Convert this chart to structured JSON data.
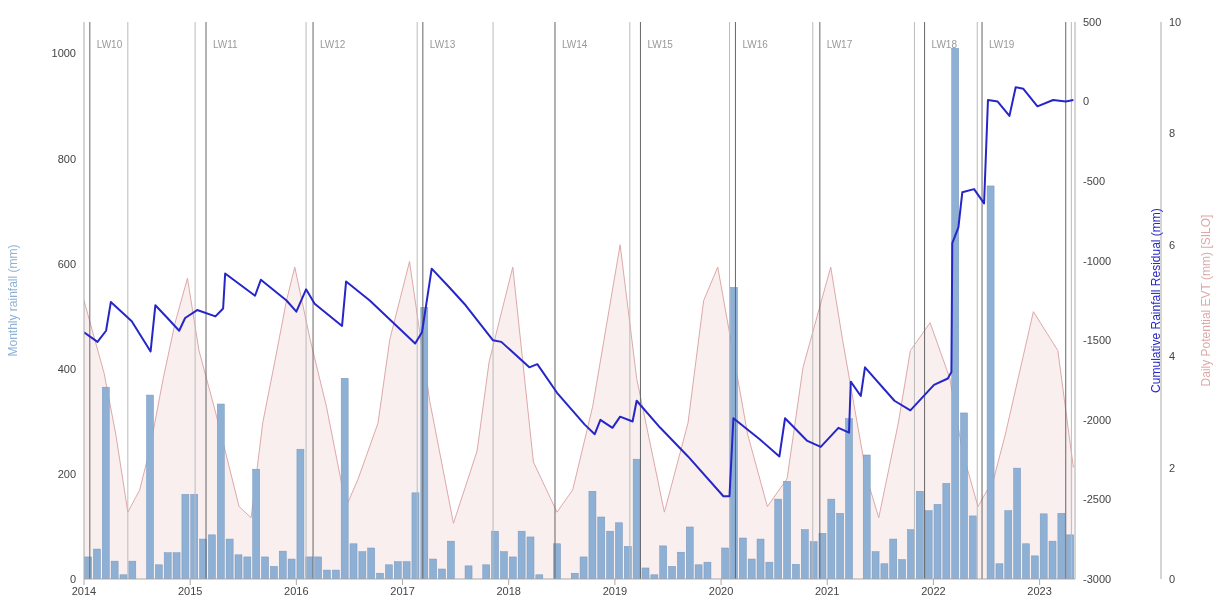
{
  "chart_data": {
    "type": "bar",
    "ylabel": "Monthly rainfall (mm)",
    "y2label": "Cumulative Rainfall Residual (mm)",
    "y3label": "Daily Potential EVT (mm) [SILO]",
    "xlim": [
      "2014-01-01",
      "2023-05-01"
    ],
    "xticks": [
      "2014",
      "2015",
      "2016",
      "2017",
      "2018",
      "2019",
      "2020",
      "2021",
      "2022",
      "2023"
    ],
    "ylim": [
      0,
      1060
    ],
    "yticks": [
      0,
      200,
      400,
      600,
      800,
      1000
    ],
    "y2lim": [
      -3000,
      500
    ],
    "y2ticks": [
      -3000,
      -2500,
      -2000,
      -1500,
      -1000,
      -500,
      0,
      500
    ],
    "y3lim": [
      0,
      10
    ],
    "y3ticks": [
      0,
      2,
      4,
      6,
      8,
      10
    ],
    "grid": false,
    "legend": false,
    "series": [
      {
        "type": "area",
        "axis": "y3",
        "color": "#dfa8a8",
        "x": [
          "2014-01-01",
          "2014-03-09",
          "2014-04-19",
          "2014-05-30",
          "2014-07-10",
          "2014-08-13",
          "2014-09-30",
          "2014-11-10",
          "2014-12-22",
          "2015-02-01",
          "2015-03-27",
          "2015-06-17",
          "2015-07-28",
          "2015-09-07",
          "2015-10-18",
          "2015-11-28",
          "2015-12-26",
          "2016-02-18",
          "2016-04-13",
          "2016-06-20",
          "2016-07-31",
          "2016-10-08",
          "2016-11-18",
          "2017-01-25",
          "2017-04-03",
          "2017-06-24",
          "2017-09-14",
          "2017-10-25",
          "2018-01-15",
          "2018-03-25",
          "2018-06-15",
          "2018-08-08",
          "2018-10-16",
          "2019-01-19",
          "2019-03-15",
          "2019-06-19",
          "2019-09-09",
          "2019-11-02",
          "2019-12-20",
          "2020-04-01",
          "2020-06-08",
          "2020-08-15",
          "2020-10-09",
          "2021-01-13",
          "2021-02-23",
          "2021-05-16",
          "2021-06-26",
          "2021-09-02",
          "2021-10-13",
          "2021-12-20",
          "2022-02-27",
          "2022-04-09",
          "2022-06-02",
          "2022-07-26",
          "2022-09-05",
          "2022-12-10",
          "2023-03-03",
          "2023-04-13",
          "2023-04-26"
        ],
        "values": [
          5.0,
          3.7,
          2.6,
          1.2,
          1.6,
          2.3,
          3.6,
          4.6,
          5.4,
          4.1,
          3.0,
          1.3,
          1.1,
          2.8,
          3.9,
          5.0,
          5.6,
          4.3,
          3.1,
          1.3,
          1.8,
          2.8,
          4.3,
          5.7,
          3.2,
          1.0,
          2.3,
          3.9,
          5.6,
          2.1,
          1.2,
          1.6,
          3.1,
          6.0,
          3.6,
          1.2,
          2.8,
          5.0,
          5.6,
          2.6,
          1.3,
          1.8,
          3.8,
          5.6,
          4.3,
          1.8,
          1.1,
          2.8,
          4.1,
          4.6,
          3.6,
          2.3,
          1.3,
          1.8,
          2.6,
          4.8,
          4.1,
          2.5,
          2.0
        ]
      },
      {
        "color": "#8eb0d4",
        "x": [
          "2014-01-15",
          "2014-02-15",
          "2014-03-15",
          "2014-04-15",
          "2014-05-15",
          "2014-06-15",
          "2014-07-15",
          "2014-08-15",
          "2014-09-15",
          "2014-10-15",
          "2014-11-15",
          "2014-12-15",
          "2015-01-15",
          "2015-02-15",
          "2015-03-15",
          "2015-04-15",
          "2015-05-15",
          "2015-06-15",
          "2015-07-15",
          "2015-08-15",
          "2015-09-15",
          "2015-10-15",
          "2015-11-15",
          "2015-12-15",
          "2016-01-15",
          "2016-02-15",
          "2016-03-15",
          "2016-04-15",
          "2016-05-15",
          "2016-06-15",
          "2016-07-15",
          "2016-08-15",
          "2016-09-15",
          "2016-10-15",
          "2016-11-15",
          "2016-12-15",
          "2017-01-15",
          "2017-02-15",
          "2017-03-15",
          "2017-04-15",
          "2017-05-15",
          "2017-06-15",
          "2017-07-15",
          "2017-08-15",
          "2017-09-15",
          "2017-10-15",
          "2017-11-15",
          "2017-12-15",
          "2018-01-15",
          "2018-02-15",
          "2018-03-15",
          "2018-04-15",
          "2018-05-15",
          "2018-06-15",
          "2018-07-15",
          "2018-08-15",
          "2018-09-15",
          "2018-10-15",
          "2018-11-15",
          "2018-12-15",
          "2019-01-15",
          "2019-02-15",
          "2019-03-15",
          "2019-04-15",
          "2019-05-15",
          "2019-06-15",
          "2019-07-15",
          "2019-08-15",
          "2019-09-15",
          "2019-10-15",
          "2019-11-15",
          "2019-12-15",
          "2020-01-15",
          "2020-02-15",
          "2020-03-15",
          "2020-04-15",
          "2020-05-15",
          "2020-06-15",
          "2020-07-15",
          "2020-08-15",
          "2020-09-15",
          "2020-10-15",
          "2020-11-15",
          "2020-12-15",
          "2021-01-15",
          "2021-02-15",
          "2021-03-15",
          "2021-04-15",
          "2021-05-15",
          "2021-06-15",
          "2021-07-15",
          "2021-08-15",
          "2021-09-15",
          "2021-10-15",
          "2021-11-15",
          "2021-12-15",
          "2022-01-15",
          "2022-02-15",
          "2022-03-15",
          "2022-04-15",
          "2022-05-15",
          "2022-06-15",
          "2022-07-15",
          "2022-08-15",
          "2022-09-15",
          "2022-10-15",
          "2022-11-15",
          "2022-12-15",
          "2023-01-15",
          "2023-02-15",
          "2023-03-15",
          "2023-04-15"
        ],
        "values": [
          42,
          57,
          365,
          34,
          8,
          34,
          0,
          350,
          27,
          50,
          50,
          161,
          161,
          76,
          84,
          333,
          76,
          46,
          42,
          209,
          42,
          24,
          53,
          38,
          247,
          42,
          42,
          17,
          17,
          382,
          67,
          52,
          59,
          11,
          27,
          33,
          33,
          164,
          517,
          38,
          19,
          72,
          0,
          25,
          0,
          27,
          91,
          52,
          42,
          91,
          80,
          8,
          0,
          67,
          0,
          11,
          42,
          167,
          118,
          91,
          107,
          62,
          228,
          21,
          8,
          63,
          24,
          51,
          99,
          27,
          32,
          0,
          59,
          555,
          78,
          38,
          76,
          32,
          152,
          186,
          28,
          94,
          71,
          87,
          152,
          125,
          305,
          0,
          236,
          52,
          29,
          76,
          37,
          94,
          167,
          130,
          142,
          182,
          1010,
          316,
          120,
          0,
          748,
          29,
          130,
          211,
          67,
          44,
          124,
          72,
          125,
          84
        ]
      },
      {
        "type": "line",
        "axis": "y2",
        "color": "#2626c8",
        "x": [
          "2014-01-01",
          "2014-02-17",
          "2014-03-16",
          "2014-04-02",
          "2014-06-13",
          "2014-08-17",
          "2014-09-03",
          "2014-10-14",
          "2014-11-24",
          "2014-12-14",
          "2015-01-25",
          "2015-03-27",
          "2015-04-23",
          "2015-04-30",
          "2015-08-11",
          "2015-08-31",
          "2015-11-28",
          "2016-01-01",
          "2016-02-04",
          "2016-03-03",
          "2016-06-06",
          "2016-06-20",
          "2016-09-10",
          "2017-02-14",
          "2017-03-07",
          "2017-04-10",
          "2017-06-11",
          "2017-08-05",
          "2017-11-08",
          "2017-12-06",
          "2018-03-11",
          "2018-04-08",
          "2018-06-15",
          "2018-09-19",
          "2018-10-23",
          "2018-11-12",
          "2018-12-23",
          "2019-01-19",
          "2019-03-01",
          "2019-03-15",
          "2019-06-05",
          "2019-09-09",
          "2020-01-09",
          "2020-01-30",
          "2020-02-13",
          "2020-05-11",
          "2020-07-19",
          "2020-08-08",
          "2020-10-22",
          "2020-12-09",
          "2021-02-09",
          "2021-03-15",
          "2021-03-21",
          "2021-04-25",
          "2021-05-09",
          "2021-08-19",
          "2021-10-13",
          "2022-01-03",
          "2022-02-20",
          "2022-03-02",
          "2022-03-05",
          "2022-03-26",
          "2022-04-09",
          "2022-05-19",
          "2022-06-23",
          "2022-07-06",
          "2022-08-09",
          "2022-09-19",
          "2022-10-10",
          "2022-11-06",
          "2022-12-24",
          "2023-02-17",
          "2023-03-30",
          "2023-04-26"
        ],
        "values": [
          -1450,
          -1510,
          -1440,
          -1260,
          -1380,
          -1570,
          -1280,
          -1360,
          -1440,
          -1360,
          -1310,
          -1350,
          -1300,
          -1080,
          -1220,
          -1120,
          -1250,
          -1320,
          -1180,
          -1270,
          -1410,
          -1130,
          -1250,
          -1520,
          -1450,
          -1050,
          -1170,
          -1280,
          -1500,
          -1510,
          -1670,
          -1650,
          -1830,
          -2030,
          -2090,
          -2000,
          -2050,
          -1980,
          -2010,
          -1880,
          -2050,
          -2230,
          -2480,
          -2480,
          -1990,
          -2120,
          -2230,
          -1990,
          -2130,
          -2170,
          -2050,
          -2080,
          -1760,
          -1850,
          -1670,
          -1880,
          -1940,
          -1780,
          -1740,
          -1700,
          -890,
          -790,
          -570,
          -550,
          -640,
          10,
          0,
          -90,
          90,
          80,
          -30,
          10,
          0,
          10
        ]
      }
    ],
    "ref_lines": [
      {
        "axis": "x",
        "value": "2014-01-21",
        "label": "LW10",
        "color": "#666666"
      },
      {
        "axis": "x",
        "value": "2014-05-30",
        "label": null,
        "color": "#bbbbbb"
      },
      {
        "axis": "x",
        "value": "2015-01-18",
        "label": null,
        "color": "#bbbbbb"
      },
      {
        "axis": "x",
        "value": "2015-02-25",
        "label": "LW11",
        "color": "#666666"
      },
      {
        "axis": "x",
        "value": "2016-02-04",
        "label": null,
        "color": "#bbbbbb"
      },
      {
        "axis": "x",
        "value": "2016-02-28",
        "label": "LW12",
        "color": "#666666"
      },
      {
        "axis": "x",
        "value": "2017-02-21",
        "label": null,
        "color": "#bbbbbb"
      },
      {
        "axis": "x",
        "value": "2017-03-10",
        "label": "LW13",
        "color": "#666666"
      },
      {
        "axis": "x",
        "value": "2017-11-08",
        "label": null,
        "color": "#bbbbbb"
      },
      {
        "axis": "x",
        "value": "2018-06-08",
        "label": "LW14",
        "color": "#666666"
      },
      {
        "axis": "x",
        "value": "2019-02-22",
        "label": null,
        "color": "#bbbbbb"
      },
      {
        "axis": "x",
        "value": "2019-03-28",
        "label": "LW15",
        "color": "#666666"
      },
      {
        "axis": "x",
        "value": "2020-01-30",
        "label": null,
        "color": "#bbbbbb"
      },
      {
        "axis": "x",
        "value": "2020-02-20",
        "label": "LW16",
        "color": "#666666"
      },
      {
        "axis": "x",
        "value": "2020-11-12",
        "label": null,
        "color": "#bbbbbb"
      },
      {
        "axis": "x",
        "value": "2020-12-06",
        "label": "LW17",
        "color": "#666666"
      },
      {
        "axis": "x",
        "value": "2021-10-27",
        "label": null,
        "color": "#bbbbbb"
      },
      {
        "axis": "x",
        "value": "2021-12-01",
        "label": "LW18",
        "color": "#666666"
      },
      {
        "axis": "x",
        "value": "2022-05-30",
        "label": null,
        "color": "#bbbbbb"
      },
      {
        "axis": "x",
        "value": "2022-06-16",
        "label": "LW19",
        "color": "#666666"
      },
      {
        "axis": "x",
        "value": "2023-03-30",
        "label": null,
        "color": "#666666"
      },
      {
        "axis": "x",
        "value": "2023-04-19",
        "label": null,
        "color": "#bbbbbb"
      }
    ]
  }
}
